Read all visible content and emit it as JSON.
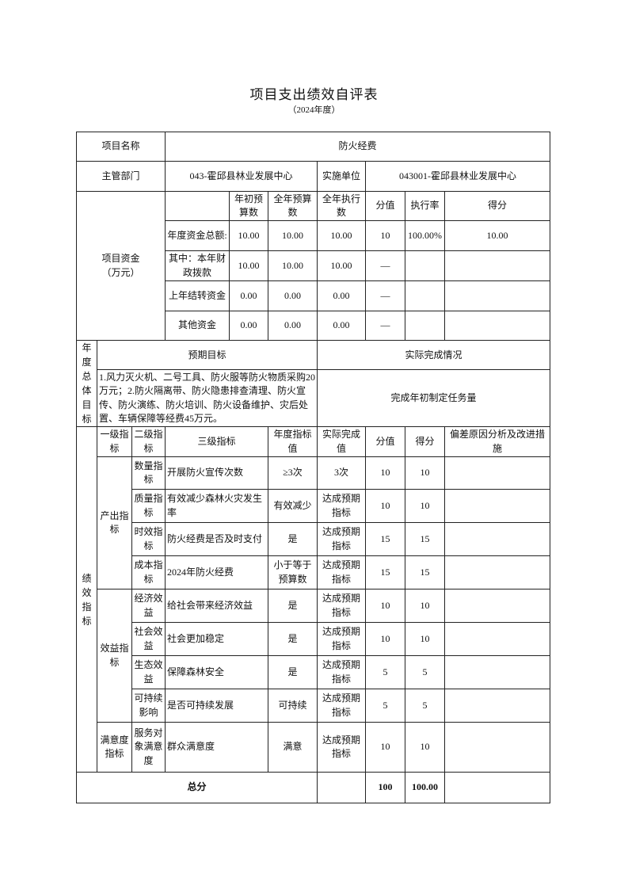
{
  "title": "项目支出绩效自评表",
  "subtitle": "（2024年度）",
  "project": {
    "name_label": "项目名称",
    "name_value": "防火经费",
    "dept_label": "主管部门",
    "dept_value": "043-霍邱县林业发展中心",
    "unit_label": "实施单位",
    "unit_value": "043001-霍邱县林业发展中心"
  },
  "funds": {
    "label": "项目资金（万元）",
    "headers": [
      "年初预算数",
      "全年预算数",
      "全年执行数",
      "分值",
      "执行率",
      "得分"
    ],
    "rows": [
      {
        "label": "年度资金总额:",
        "initial": "10.00",
        "annual": "10.00",
        "executed": "10.00",
        "score_value": "10",
        "rate": "100.00%",
        "score": "10.00"
      },
      {
        "label": "其中：本年财政拨款",
        "initial": "10.00",
        "annual": "10.00",
        "executed": "10.00",
        "score_value": "—",
        "rate": "",
        "score": ""
      },
      {
        "label": "上年结转资金",
        "initial": "0.00",
        "annual": "0.00",
        "executed": "0.00",
        "score_value": "—",
        "rate": "",
        "score": ""
      },
      {
        "label": "其他资金",
        "initial": "0.00",
        "annual": "0.00",
        "executed": "0.00",
        "score_value": "—",
        "rate": "",
        "score": ""
      }
    ]
  },
  "goals": {
    "label": "年度总体目标",
    "expected_header": "预期目标",
    "actual_header": "实际完成情况",
    "expected": "1.风力灭火机、二号工具、防火服等防火物质采购20万元；2.防火隔离带、防火隐患排查清理、防火宣传、防火演练、防火培训、防火设备维护、灾后处置、车辆保障等经费45万元。",
    "actual": "完成年初制定任务量"
  },
  "indicators": {
    "label": "绩效指标",
    "headers": [
      "一级指标",
      "二级指标",
      "三级指标",
      "年度指标值",
      "实际完成值",
      "分值",
      "得分",
      "偏差原因分析及改进措施"
    ],
    "groups": [
      {
        "level1": "产出指标",
        "rows": [
          {
            "level2": "数量指标",
            "level3": "开展防火宣传次数",
            "target": "≥3次",
            "actual": "3次",
            "score_value": "10",
            "score": "10",
            "note": ""
          },
          {
            "level2": "质量指标",
            "level3": "有效减少森林火灾发生率",
            "target": "有效减少",
            "actual": "达成预期指标",
            "score_value": "10",
            "score": "10",
            "note": ""
          },
          {
            "level2": "时效指标",
            "level3": "防火经费是否及时支付",
            "target": "是",
            "actual": "达成预期指标",
            "score_value": "15",
            "score": "15",
            "note": ""
          },
          {
            "level2": "成本指标",
            "level3": "2024年防火经费",
            "target": "小于等于预算数",
            "actual": "达成预期指标",
            "score_value": "15",
            "score": "15",
            "note": ""
          }
        ]
      },
      {
        "level1": "效益指标",
        "rows": [
          {
            "level2": "经济效益",
            "level3": "给社会带来经济效益",
            "target": "是",
            "actual": "达成预期指标",
            "score_value": "10",
            "score": "10",
            "note": ""
          },
          {
            "level2": "社会效益",
            "level3": "社会更加稳定",
            "target": "是",
            "actual": "达成预期指标",
            "score_value": "10",
            "score": "10",
            "note": ""
          },
          {
            "level2": "生态效益",
            "level3": "保障森林安全",
            "target": "是",
            "actual": "达成预期指标",
            "score_value": "5",
            "score": "5",
            "note": ""
          },
          {
            "level2": "可持续影响",
            "level3": "是否可持续发展",
            "target": "可持续",
            "actual": "达成预期指标",
            "score_value": "5",
            "score": "5",
            "note": ""
          }
        ]
      },
      {
        "level1": "满意度指标",
        "rows": [
          {
            "level2": "服务对象满意度",
            "level3": "群众满意度",
            "target": "满意",
            "actual": "达成预期指标",
            "score_value": "10",
            "score": "10",
            "note": ""
          }
        ]
      }
    ]
  },
  "total": {
    "label": "总分",
    "score_value": "100",
    "score": "100.00"
  }
}
